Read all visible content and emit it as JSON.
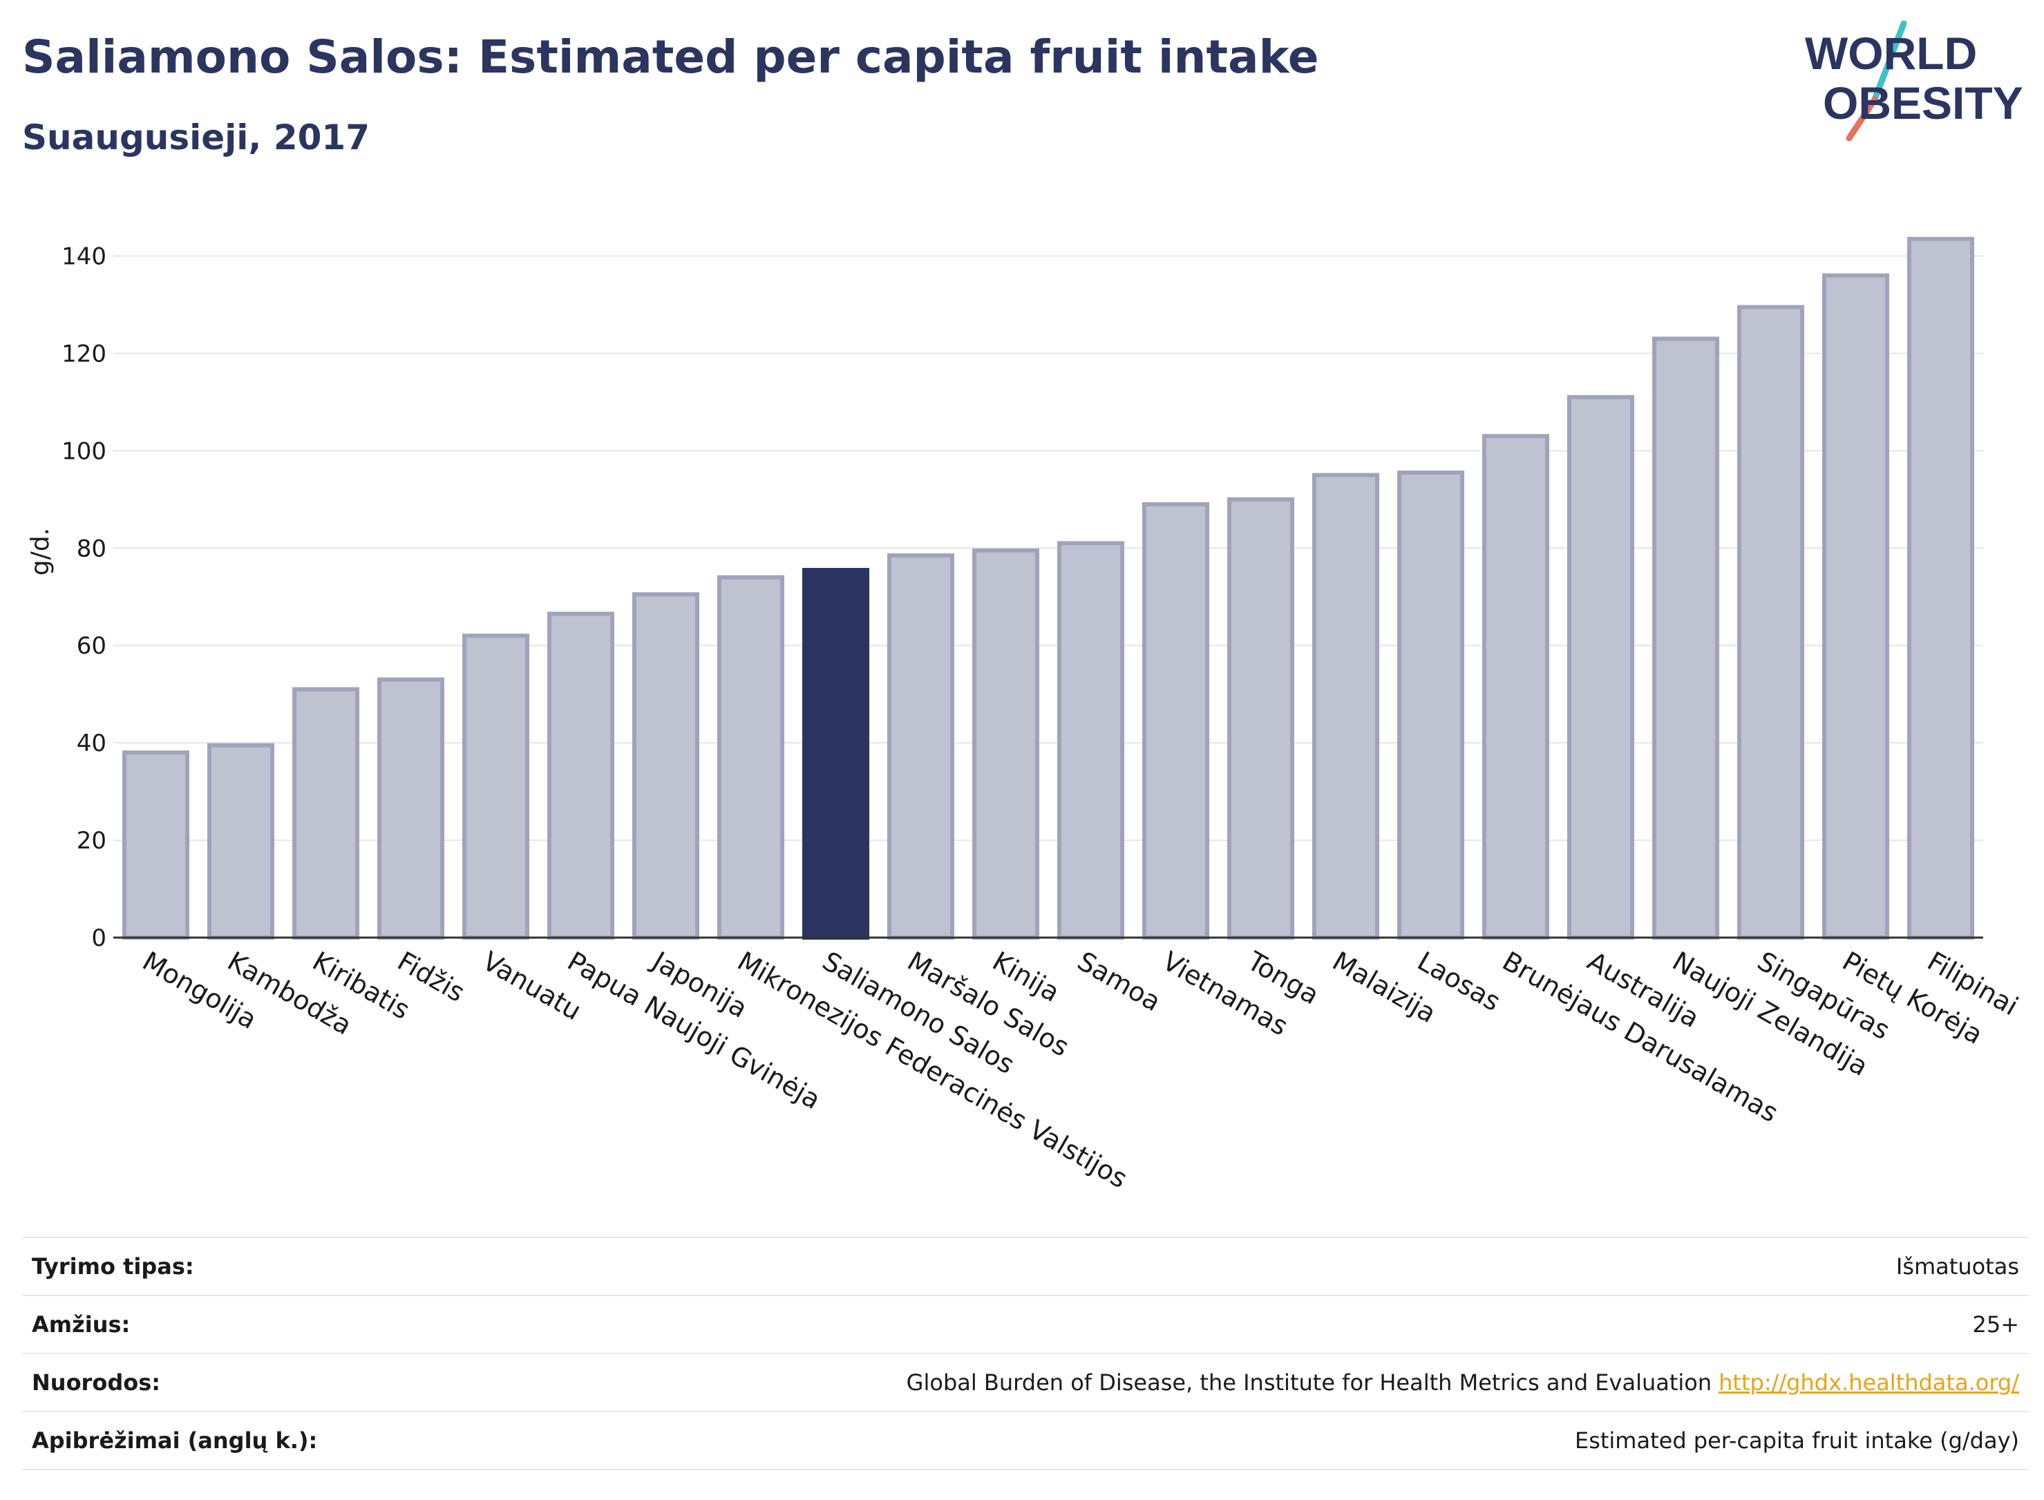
{
  "header": {
    "title": "Saliamono Salos: Estimated per capita fruit intake",
    "subtitle": "Suaugusieji, 2017"
  },
  "logo": {
    "line1": "WORLD",
    "line2": "OBESITY",
    "colors": {
      "text": "#2b3560",
      "slash_top": "#3fc1c9",
      "slash_bottom": "#e8705f"
    }
  },
  "colors": {
    "bar": "#bfc2d0",
    "bar_edge": "#9fa4bb",
    "highlight": "#2b3560",
    "grid": "#e4e6ec",
    "axis": "#333333"
  },
  "chart_data": {
    "type": "bar",
    "ylabel": "g/d.",
    "xlabel": "",
    "ylim": [
      0,
      150
    ],
    "yticks": [
      0,
      20,
      40,
      60,
      80,
      100,
      120,
      140
    ],
    "grid": true,
    "highlight": "Saliamono Salos",
    "categories": [
      "Mongolija",
      "Kambodža",
      "Kiribatis",
      "Fidžis",
      "Vanuatu",
      "Papua Naujoji Gvinėja",
      "Japonija",
      "Mikronezijos Federacinės Valstijos",
      "Saliamono Salos",
      "Maršalo Salos",
      "Kinija",
      "Samoa",
      "Vietnamas",
      "Tonga",
      "Malaizija",
      "Laosas",
      "Brunėjaus Darusalamas",
      "Australija",
      "Naujoji Zelandija",
      "Singapūras",
      "Pietų Korėja",
      "Filipinai"
    ],
    "values": [
      38,
      39.5,
      51,
      53,
      62,
      66.5,
      70.5,
      74,
      75.5,
      78.5,
      79.5,
      81,
      89,
      90,
      95,
      95.5,
      103,
      111,
      123,
      129.5,
      136,
      143.5
    ]
  },
  "meta": [
    {
      "key": "Tyrimo tipas:",
      "value": "Išmatuotas",
      "link": ""
    },
    {
      "key": "Amžius:",
      "value": "25+",
      "link": ""
    },
    {
      "key": "Nuorodos:",
      "value": "Global Burden of Disease, the Institute for Health Metrics and Evaluation",
      "link": "http://ghdx.healthdata.org/"
    },
    {
      "key": "Apibrėžimai (anglų k.):",
      "value": "Estimated per-capita fruit intake (g/day)",
      "link": ""
    }
  ]
}
